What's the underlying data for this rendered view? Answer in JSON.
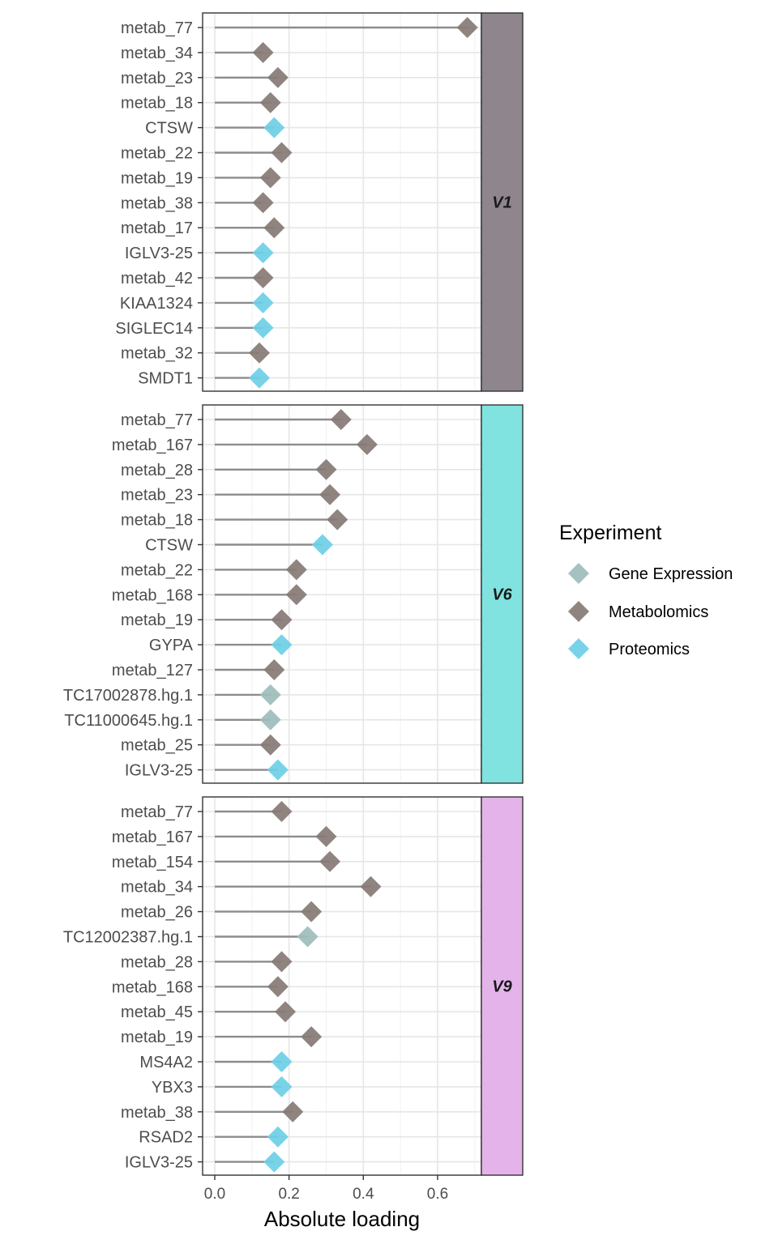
{
  "chart_data": {
    "type": "lollipop",
    "xlabel": "Absolute loading",
    "xticks": [
      0.0,
      0.2,
      0.4,
      0.6
    ],
    "xtick_labels": [
      "0.0",
      "0.2",
      "0.4",
      "0.6"
    ],
    "xlim": [
      -0.03,
      0.72
    ],
    "legend": {
      "title": "Experiment",
      "placement": "right",
      "items": [
        {
          "name": "Gene Expression",
          "color": "#9dbdbb"
        },
        {
          "name": "Metabolomics",
          "color": "#877a75"
        },
        {
          "name": "Proteomics",
          "color": "#6dcfe6"
        }
      ]
    },
    "facets": [
      {
        "label": "V1",
        "strip_color": "#8e858d",
        "points": [
          {
            "feature": "metab_77",
            "value": 0.68,
            "experiment": "Metabolomics"
          },
          {
            "feature": "metab_34",
            "value": 0.13,
            "experiment": "Metabolomics"
          },
          {
            "feature": "metab_23",
            "value": 0.17,
            "experiment": "Metabolomics"
          },
          {
            "feature": "metab_18",
            "value": 0.15,
            "experiment": "Metabolomics"
          },
          {
            "feature": "CTSW",
            "value": 0.16,
            "experiment": "Proteomics"
          },
          {
            "feature": "metab_22",
            "value": 0.18,
            "experiment": "Metabolomics"
          },
          {
            "feature": "metab_19",
            "value": 0.15,
            "experiment": "Metabolomics"
          },
          {
            "feature": "metab_38",
            "value": 0.13,
            "experiment": "Metabolomics"
          },
          {
            "feature": "metab_17",
            "value": 0.16,
            "experiment": "Metabolomics"
          },
          {
            "feature": "IGLV3-25",
            "value": 0.13,
            "experiment": "Proteomics"
          },
          {
            "feature": "metab_42",
            "value": 0.13,
            "experiment": "Metabolomics"
          },
          {
            "feature": "KIAA1324",
            "value": 0.13,
            "experiment": "Proteomics"
          },
          {
            "feature": "SIGLEC14",
            "value": 0.13,
            "experiment": "Proteomics"
          },
          {
            "feature": "metab_32",
            "value": 0.12,
            "experiment": "Metabolomics"
          },
          {
            "feature": "SMDT1",
            "value": 0.12,
            "experiment": "Proteomics"
          }
        ]
      },
      {
        "label": "V6",
        "strip_color": "#80e3df",
        "points": [
          {
            "feature": "metab_77",
            "value": 0.34,
            "experiment": "Metabolomics"
          },
          {
            "feature": "metab_167",
            "value": 0.41,
            "experiment": "Metabolomics"
          },
          {
            "feature": "metab_28",
            "value": 0.3,
            "experiment": "Metabolomics"
          },
          {
            "feature": "metab_23",
            "value": 0.31,
            "experiment": "Metabolomics"
          },
          {
            "feature": "metab_18",
            "value": 0.33,
            "experiment": "Metabolomics"
          },
          {
            "feature": "CTSW",
            "value": 0.29,
            "experiment": "Proteomics"
          },
          {
            "feature": "metab_22",
            "value": 0.22,
            "experiment": "Metabolomics"
          },
          {
            "feature": "metab_168",
            "value": 0.22,
            "experiment": "Metabolomics"
          },
          {
            "feature": "metab_19",
            "value": 0.18,
            "experiment": "Metabolomics"
          },
          {
            "feature": "GYPA",
            "value": 0.18,
            "experiment": "Proteomics"
          },
          {
            "feature": "metab_127",
            "value": 0.16,
            "experiment": "Metabolomics"
          },
          {
            "feature": "TC17002878.hg.1",
            "value": 0.15,
            "experiment": "Gene Expression"
          },
          {
            "feature": "TC11000645.hg.1",
            "value": 0.15,
            "experiment": "Gene Expression"
          },
          {
            "feature": "metab_25",
            "value": 0.15,
            "experiment": "Metabolomics"
          },
          {
            "feature": "IGLV3-25",
            "value": 0.17,
            "experiment": "Proteomics"
          }
        ]
      },
      {
        "label": "V9",
        "strip_color": "#e4b3ea",
        "points": [
          {
            "feature": "metab_77",
            "value": 0.18,
            "experiment": "Metabolomics"
          },
          {
            "feature": "metab_167",
            "value": 0.3,
            "experiment": "Metabolomics"
          },
          {
            "feature": "metab_154",
            "value": 0.31,
            "experiment": "Metabolomics"
          },
          {
            "feature": "metab_34",
            "value": 0.42,
            "experiment": "Metabolomics"
          },
          {
            "feature": "metab_26",
            "value": 0.26,
            "experiment": "Metabolomics"
          },
          {
            "feature": "TC12002387.hg.1",
            "value": 0.25,
            "experiment": "Gene Expression"
          },
          {
            "feature": "metab_28",
            "value": 0.18,
            "experiment": "Metabolomics"
          },
          {
            "feature": "metab_168",
            "value": 0.17,
            "experiment": "Metabolomics"
          },
          {
            "feature": "metab_45",
            "value": 0.19,
            "experiment": "Metabolomics"
          },
          {
            "feature": "metab_19",
            "value": 0.26,
            "experiment": "Metabolomics"
          },
          {
            "feature": "MS4A2",
            "value": 0.18,
            "experiment": "Proteomics"
          },
          {
            "feature": "YBX3",
            "value": 0.18,
            "experiment": "Proteomics"
          },
          {
            "feature": "metab_38",
            "value": 0.21,
            "experiment": "Metabolomics"
          },
          {
            "feature": "RSAD2",
            "value": 0.17,
            "experiment": "Proteomics"
          },
          {
            "feature": "IGLV3-25",
            "value": 0.16,
            "experiment": "Proteomics"
          }
        ]
      }
    ]
  }
}
